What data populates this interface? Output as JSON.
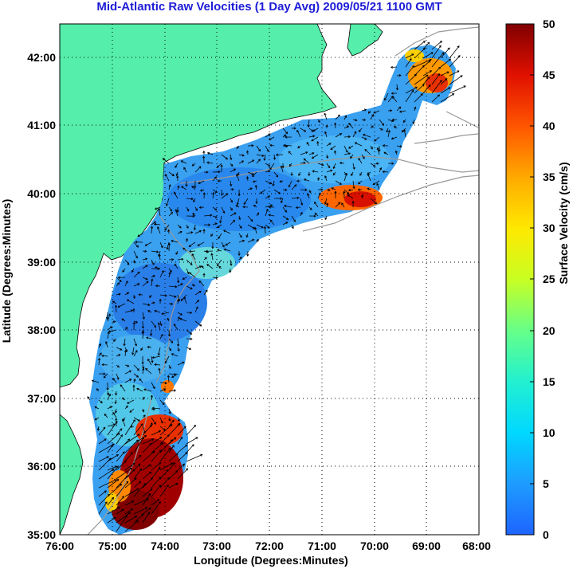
{
  "title": "Mid-Atlantic Raw Velocities (1 Day Avg) 2009/05/21 1100 GMT",
  "map": {
    "xlabel": "Longitude (Degrees:Minutes)",
    "ylabel": "Latitude (Degrees:Minutes)",
    "lon_ticks": [
      "76:00",
      "75:00",
      "74:00",
      "73:00",
      "72:00",
      "71:00",
      "70:00",
      "69:00",
      "68:00"
    ],
    "lat_ticks": [
      "42:00",
      "41:00",
      "40:00",
      "39:00",
      "38:00",
      "37:00",
      "36:00",
      "35:00"
    ],
    "land_color": "#55eeaa",
    "grid": "dotted"
  },
  "colorbar": {
    "label": "Surface Velocity (cm/s)",
    "ticks": [
      "50",
      "45",
      "40",
      "35",
      "30",
      "25",
      "20",
      "15",
      "10",
      "5",
      "0"
    ],
    "colors": [
      "#1e64ff",
      "#1e9cff",
      "#00d8ff",
      "#22f0d0",
      "#66ff88",
      "#c8ff22",
      "#ffe800",
      "#ffaa00",
      "#ff5500",
      "#e01000",
      "#800000"
    ]
  }
}
